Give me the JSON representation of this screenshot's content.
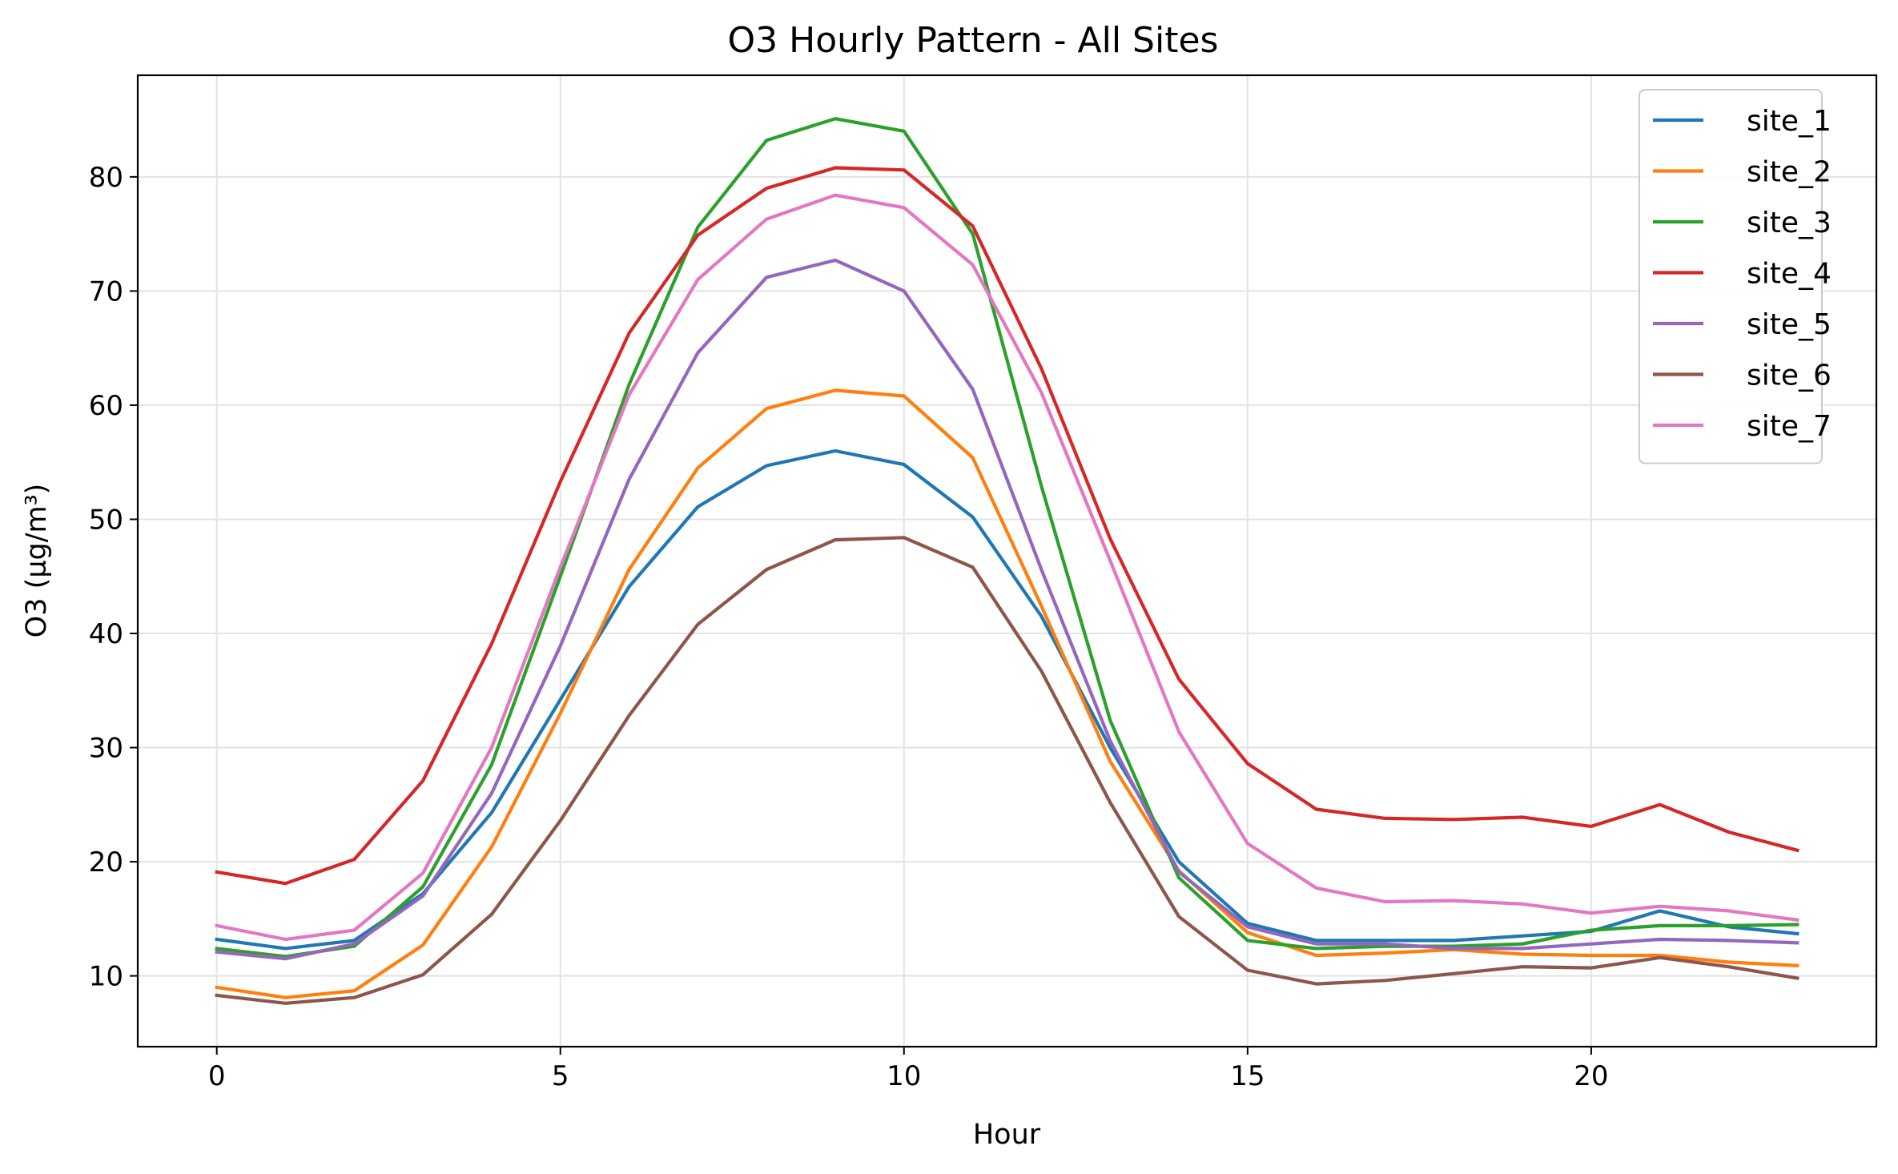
{
  "chart_data": {
    "type": "line",
    "title": "O3 Hourly Pattern - All Sites",
    "xlabel": "Hour",
    "ylabel": "O3 (µg/m³)",
    "xlim": [
      -1.15,
      24.15
    ],
    "ylim": [
      3.8,
      88.9
    ],
    "xticks": [
      0,
      5,
      10,
      15,
      20
    ],
    "yticks": [
      10,
      20,
      30,
      40,
      50,
      60,
      70,
      80
    ],
    "grid": true,
    "legend_position": "top-right",
    "x": [
      0,
      1,
      2,
      3,
      4,
      5,
      6,
      7,
      8,
      9,
      10,
      11,
      12,
      13,
      14,
      15,
      16,
      17,
      18,
      19,
      20,
      21,
      22,
      23
    ],
    "series": [
      {
        "name": "site_1",
        "color": "#1f77b4",
        "values": [
          13.2,
          12.4,
          13.1,
          17.2,
          24.3,
          34.2,
          44.1,
          51.1,
          54.7,
          56.0,
          54.8,
          50.2,
          41.5,
          30.0,
          20.0,
          14.6,
          13.1,
          13.1,
          13.1,
          13.5,
          13.9,
          15.7,
          14.3,
          13.7
        ]
      },
      {
        "name": "site_2",
        "color": "#ff7f0e",
        "values": [
          9.0,
          8.1,
          8.7,
          12.7,
          21.3,
          33.0,
          45.6,
          54.5,
          59.7,
          61.3,
          60.8,
          55.4,
          42.4,
          28.8,
          19.2,
          13.8,
          11.8,
          12.0,
          12.3,
          11.9,
          11.8,
          11.8,
          11.2,
          10.9
        ]
      },
      {
        "name": "site_3",
        "color": "#2ca02c",
        "values": [
          12.4,
          11.7,
          12.6,
          17.8,
          28.5,
          45.0,
          61.8,
          75.6,
          83.2,
          85.1,
          84.0,
          75.0,
          52.9,
          32.4,
          18.6,
          13.1,
          12.4,
          12.6,
          12.6,
          12.8,
          14.0,
          14.4,
          14.4,
          14.5
        ]
      },
      {
        "name": "site_4",
        "color": "#d62728",
        "values": [
          19.1,
          18.1,
          20.2,
          27.1,
          39.1,
          53.3,
          66.3,
          74.9,
          79.0,
          80.8,
          80.6,
          75.7,
          63.2,
          48.3,
          36.0,
          28.6,
          24.6,
          23.8,
          23.7,
          23.9,
          23.1,
          25.0,
          22.6,
          21.0
        ]
      },
      {
        "name": "site_5",
        "color": "#9467bd",
        "values": [
          12.1,
          11.5,
          12.8,
          17.0,
          26.0,
          38.9,
          53.5,
          64.6,
          71.2,
          72.7,
          70.0,
          61.4,
          45.6,
          30.6,
          19.1,
          14.3,
          12.8,
          12.8,
          12.4,
          12.4,
          12.8,
          13.2,
          13.1,
          12.9
        ]
      },
      {
        "name": "site_6",
        "color": "#8c564b",
        "values": [
          8.3,
          7.6,
          8.1,
          10.1,
          15.4,
          23.6,
          32.8,
          40.8,
          45.6,
          48.2,
          48.4,
          45.8,
          36.7,
          25.2,
          15.2,
          10.5,
          9.3,
          9.6,
          10.2,
          10.8,
          10.7,
          11.6,
          10.8,
          9.8
        ]
      },
      {
        "name": "site_7",
        "color": "#e377c2",
        "values": [
          14.4,
          13.2,
          14.0,
          19.0,
          30.0,
          45.8,
          60.9,
          71.0,
          76.3,
          78.4,
          77.3,
          72.3,
          61.1,
          46.4,
          31.4,
          21.6,
          17.7,
          16.5,
          16.6,
          16.3,
          15.5,
          16.1,
          15.7,
          14.9
        ]
      }
    ]
  }
}
